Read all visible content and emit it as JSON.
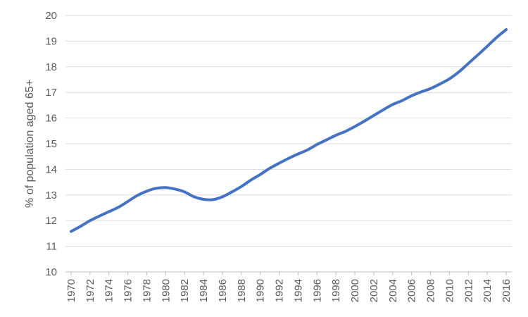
{
  "chart_data": {
    "type": "line",
    "title": "",
    "xlabel": "",
    "ylabel": "% of population aged 65+",
    "ylim": [
      10,
      20
    ],
    "y_ticks": [
      "10",
      "11",
      "12",
      "13",
      "14",
      "15",
      "16",
      "17",
      "18",
      "19",
      "20"
    ],
    "x_ticks": [
      "1970",
      "1972",
      "1974",
      "1976",
      "1978",
      "1980",
      "1982",
      "1984",
      "1986",
      "1988",
      "1990",
      "1992",
      "1994",
      "1996",
      "1998",
      "2000",
      "2002",
      "2004",
      "2006",
      "2008",
      "2010",
      "2012",
      "2014",
      "2016"
    ],
    "grid": "horizontal",
    "legend": "none",
    "line_color": "#4472c4",
    "series": [
      {
        "x": [
          1970,
          1971,
          1972,
          1973,
          1974,
          1975,
          1976,
          1977,
          1978,
          1979,
          1980,
          1981,
          1982,
          1983,
          1984,
          1985,
          1986,
          1987,
          1988,
          1989,
          1990,
          1991,
          1992,
          1993,
          1994,
          1995,
          1996,
          1997,
          1998,
          1999,
          2000,
          2001,
          2002,
          2003,
          2004,
          2005,
          2006,
          2007,
          2008,
          2009,
          2010,
          2011,
          2012,
          2013,
          2014,
          2015,
          2016
        ],
        "values": [
          11.58,
          11.78,
          12.0,
          12.18,
          12.35,
          12.52,
          12.75,
          12.98,
          13.15,
          13.26,
          13.29,
          13.23,
          13.12,
          12.93,
          12.83,
          12.82,
          12.93,
          13.12,
          13.33,
          13.58,
          13.8,
          14.04,
          14.24,
          14.43,
          14.6,
          14.76,
          14.97,
          15.15,
          15.33,
          15.48,
          15.67,
          15.88,
          16.1,
          16.32,
          16.53,
          16.68,
          16.87,
          17.02,
          17.15,
          17.33,
          17.53,
          17.8,
          18.13,
          18.46,
          18.8,
          19.15,
          19.45
        ]
      }
    ]
  }
}
